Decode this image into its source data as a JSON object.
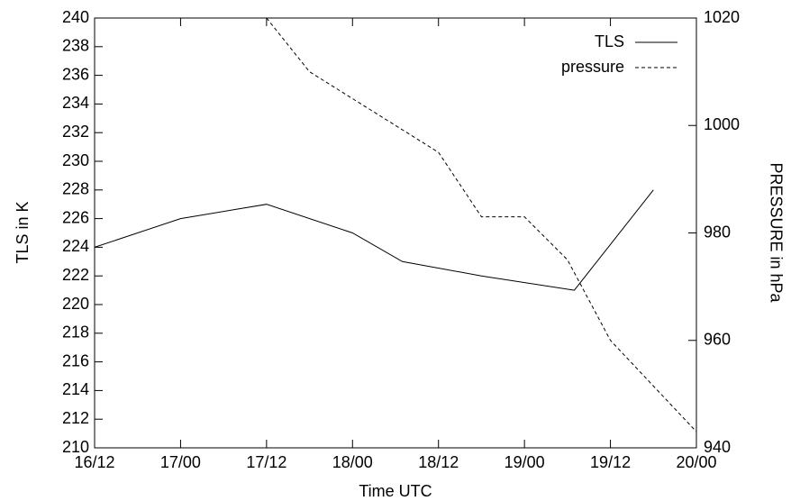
{
  "chart_data": {
    "type": "line",
    "xlabel": "Time UTC",
    "ylabel": "TLS in K",
    "y2label": "PRESSURE in hPa",
    "xlim": [
      16.5,
      20
    ],
    "xticks": [
      {
        "value": 16.5,
        "label": "16/12"
      },
      {
        "value": 17,
        "label": "17/00"
      },
      {
        "value": 17.5,
        "label": "17/12"
      },
      {
        "value": 18,
        "label": "18/00"
      },
      {
        "value": 18.5,
        "label": "18/12"
      },
      {
        "value": 19,
        "label": "19/00"
      },
      {
        "value": 19.5,
        "label": "19/12"
      },
      {
        "value": 20,
        "label": "20/00"
      }
    ],
    "ylim": [
      210,
      240
    ],
    "yticks": [
      210,
      212,
      214,
      216,
      218,
      220,
      222,
      224,
      226,
      228,
      230,
      232,
      234,
      236,
      238,
      240
    ],
    "y2lim": [
      940,
      1020
    ],
    "y2ticks": [
      940,
      960,
      980,
      1000,
      1020
    ],
    "legend": "upper right",
    "series": [
      {
        "name": "TLS",
        "color": "#000000",
        "dash": "solid",
        "x": [
          16.5,
          17,
          17.5,
          18,
          18.29,
          18.75,
          19.29,
          19.75
        ],
        "values": [
          224,
          226,
          227,
          225,
          223,
          222,
          221,
          228
        ]
      },
      {
        "name": "pressure",
        "color": "#000000",
        "dash": "dashed",
        "axis": "y2",
        "x": [
          17.5,
          17.75,
          18.5,
          18.75,
          19,
          19.25,
          19.5,
          20
        ],
        "values": [
          1020,
          1010,
          995,
          983,
          983,
          975,
          960,
          943
        ]
      }
    ]
  }
}
